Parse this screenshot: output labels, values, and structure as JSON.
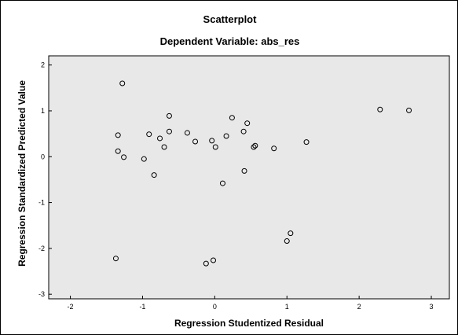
{
  "chart_data": {
    "type": "scatter",
    "title": "Scatterplot",
    "subtitle": "Dependent Variable: abs_res",
    "xlabel": "Regression Studentized Residual",
    "ylabel": "Regression Standardized Predicted Value",
    "xlim": [
      -2.3,
      3.25
    ],
    "ylim": [
      -3.1,
      2.2
    ],
    "xticks": [
      "-2",
      "-1",
      "0",
      "1",
      "2",
      "3"
    ],
    "yticks": [
      "2",
      "1",
      "0",
      "-1",
      "-2",
      "-3"
    ],
    "grid": false,
    "plot_background": "#e8e8e8",
    "marker_color": "#000000",
    "points": [
      {
        "x": -1.28,
        "y": 1.6
      },
      {
        "x": -1.34,
        "y": 0.47
      },
      {
        "x": -1.34,
        "y": 0.12
      },
      {
        "x": -1.26,
        "y": -0.01
      },
      {
        "x": -0.98,
        "y": -0.05
      },
      {
        "x": -0.91,
        "y": 0.49
      },
      {
        "x": -0.76,
        "y": 0.4
      },
      {
        "x": -0.7,
        "y": 0.21
      },
      {
        "x": -0.63,
        "y": 0.89
      },
      {
        "x": -0.63,
        "y": 0.55
      },
      {
        "x": -0.84,
        "y": -0.4
      },
      {
        "x": -0.38,
        "y": 0.52
      },
      {
        "x": -0.27,
        "y": 0.33
      },
      {
        "x": -0.04,
        "y": 0.35
      },
      {
        "x": 0.01,
        "y": 0.21
      },
      {
        "x": 0.16,
        "y": 0.45
      },
      {
        "x": 0.24,
        "y": 0.85
      },
      {
        "x": 0.11,
        "y": -0.58
      },
      {
        "x": 0.4,
        "y": 0.55
      },
      {
        "x": 0.45,
        "y": 0.73
      },
      {
        "x": 0.54,
        "y": 0.21
      },
      {
        "x": 0.56,
        "y": 0.24
      },
      {
        "x": 0.41,
        "y": -0.31
      },
      {
        "x": 0.82,
        "y": 0.18
      },
      {
        "x": 1.27,
        "y": 0.32
      },
      {
        "x": 2.29,
        "y": 1.03
      },
      {
        "x": 2.69,
        "y": 1.01
      },
      {
        "x": 1.05,
        "y": -1.67
      },
      {
        "x": 1.0,
        "y": -1.84
      },
      {
        "x": -1.37,
        "y": -2.22
      },
      {
        "x": -0.12,
        "y": -2.33
      },
      {
        "x": -0.02,
        "y": -2.26
      }
    ]
  }
}
